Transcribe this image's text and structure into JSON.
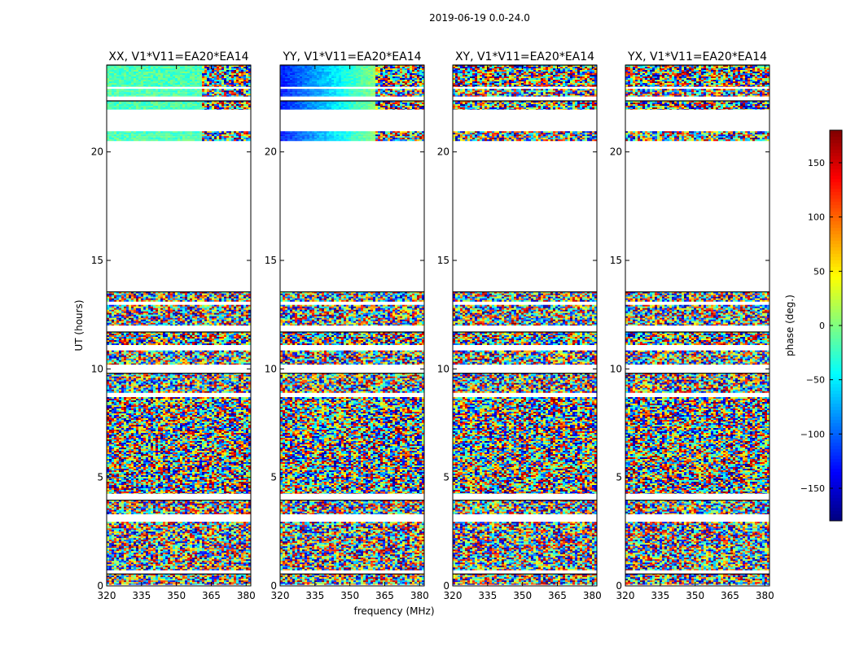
{
  "chart_data": {
    "type": "heatmap",
    "suptitle": "2019-06-19 0.0-24.0",
    "xlabel": "frequency (MHz)",
    "ylabel": "UT (hours)",
    "xlim": [
      320,
      382
    ],
    "ylim": [
      0,
      24
    ],
    "xticks": [
      "320",
      "335",
      "350",
      "365",
      "380"
    ],
    "yticks": [
      "0",
      "5",
      "10",
      "15",
      "20"
    ],
    "panels": [
      {
        "title": "XX, V1*V11=EA20*EA14",
        "pol": "XX"
      },
      {
        "title": "YY, V1*V11=EA20*EA14",
        "pol": "YY"
      },
      {
        "title": "XY, V1*V11=EA20*EA14",
        "pol": "XY"
      },
      {
        "title": "YX, V1*V11=EA20*EA14",
        "pol": "YX"
      }
    ],
    "data_bands_hours": [
      [
        0.05,
        0.55
      ],
      [
        0.72,
        2.95
      ],
      [
        3.3,
        3.95
      ],
      [
        4.25,
        8.7
      ],
      [
        8.9,
        9.8
      ],
      [
        10.2,
        10.85
      ],
      [
        11.1,
        11.7
      ],
      [
        12.0,
        12.95
      ],
      [
        13.1,
        13.55
      ],
      [
        20.5,
        20.95
      ],
      [
        21.95,
        22.35
      ],
      [
        22.55,
        22.9
      ],
      [
        23.0,
        24.0
      ]
    ],
    "colorbar": {
      "label": "phase (deg.)",
      "range": [
        -180,
        180
      ],
      "ticks": [
        "150",
        "100",
        "50",
        "0",
        "−50",
        "−100",
        "−150"
      ],
      "tick_values": [
        150,
        100,
        50,
        0,
        -50,
        -100,
        -150
      ],
      "colormap": "jet",
      "colors": [
        "#00007f",
        "#0000ff",
        "#007fff",
        "#00ffff",
        "#7fff7f",
        "#ffff00",
        "#ff7f00",
        "#ff0000",
        "#7f0000"
      ]
    }
  }
}
